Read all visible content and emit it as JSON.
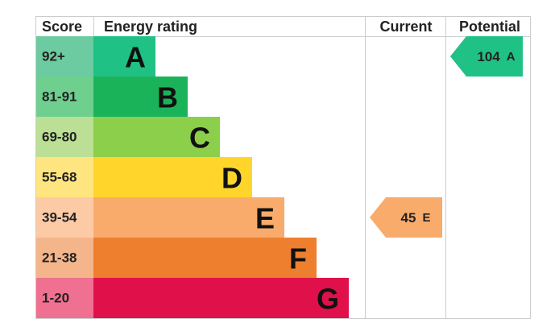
{
  "header": {
    "score": "Score",
    "rating": "Energy rating",
    "current": "Current",
    "potential": "Potential"
  },
  "rows": [
    {
      "score": "92+",
      "letter": "A"
    },
    {
      "score": "81-91",
      "letter": "B"
    },
    {
      "score": "69-80",
      "letter": "C"
    },
    {
      "score": "55-68",
      "letter": "D"
    },
    {
      "score": "39-54",
      "letter": "E"
    },
    {
      "score": "21-38",
      "letter": "F"
    },
    {
      "score": "1-20",
      "letter": "G"
    }
  ],
  "current": {
    "value": "45",
    "letter": "E"
  },
  "potential": {
    "value": "104",
    "letter": "A"
  }
}
